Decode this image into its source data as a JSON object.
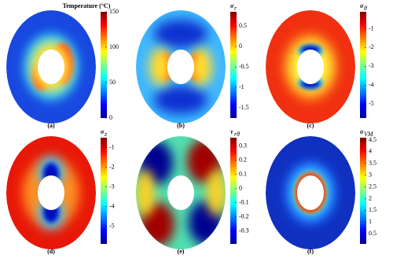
{
  "chart_data": [
    {
      "type": "contour",
      "label": "Temperature (°C)",
      "caption": "(a)",
      "clim": [
        0,
        150
      ],
      "ticks": [
        0,
        50,
        100,
        150
      ]
    },
    {
      "type": "contour",
      "label": "σ",
      "label_sub": "r",
      "caption": "(b)",
      "clim": [
        -1.75,
        0.85
      ],
      "ticks": [
        -1.5,
        -1,
        -0.5,
        0,
        0.5
      ]
    },
    {
      "type": "contour",
      "label": "σ",
      "label_sub": "θ",
      "caption": "(c)",
      "clim": [
        -5.75,
        -0.1
      ],
      "ticks": [
        -5,
        -4,
        -3,
        -2,
        -1
      ]
    },
    {
      "type": "contour",
      "label": "σ",
      "label_sub": "z",
      "caption": "(d)",
      "clim": [
        -5.9,
        -0.5
      ],
      "ticks": [
        -5,
        -4,
        -3,
        -2,
        -1
      ]
    },
    {
      "type": "contour",
      "label": "τ",
      "label_sub": "rθ",
      "caption": "(e)",
      "clim": [
        -0.39,
        0.36
      ],
      "ticks": [
        -0.3,
        -0.2,
        -0.1,
        0,
        0.1,
        0.2,
        0.3
      ]
    },
    {
      "type": "contour",
      "label": "σ",
      "label_sub": "VM",
      "caption": "(f)",
      "clim": [
        0.07,
        4.6
      ],
      "ticks": [
        0.5,
        1,
        1.5,
        2,
        2.5,
        3,
        3.5,
        4,
        4.5
      ]
    }
  ]
}
